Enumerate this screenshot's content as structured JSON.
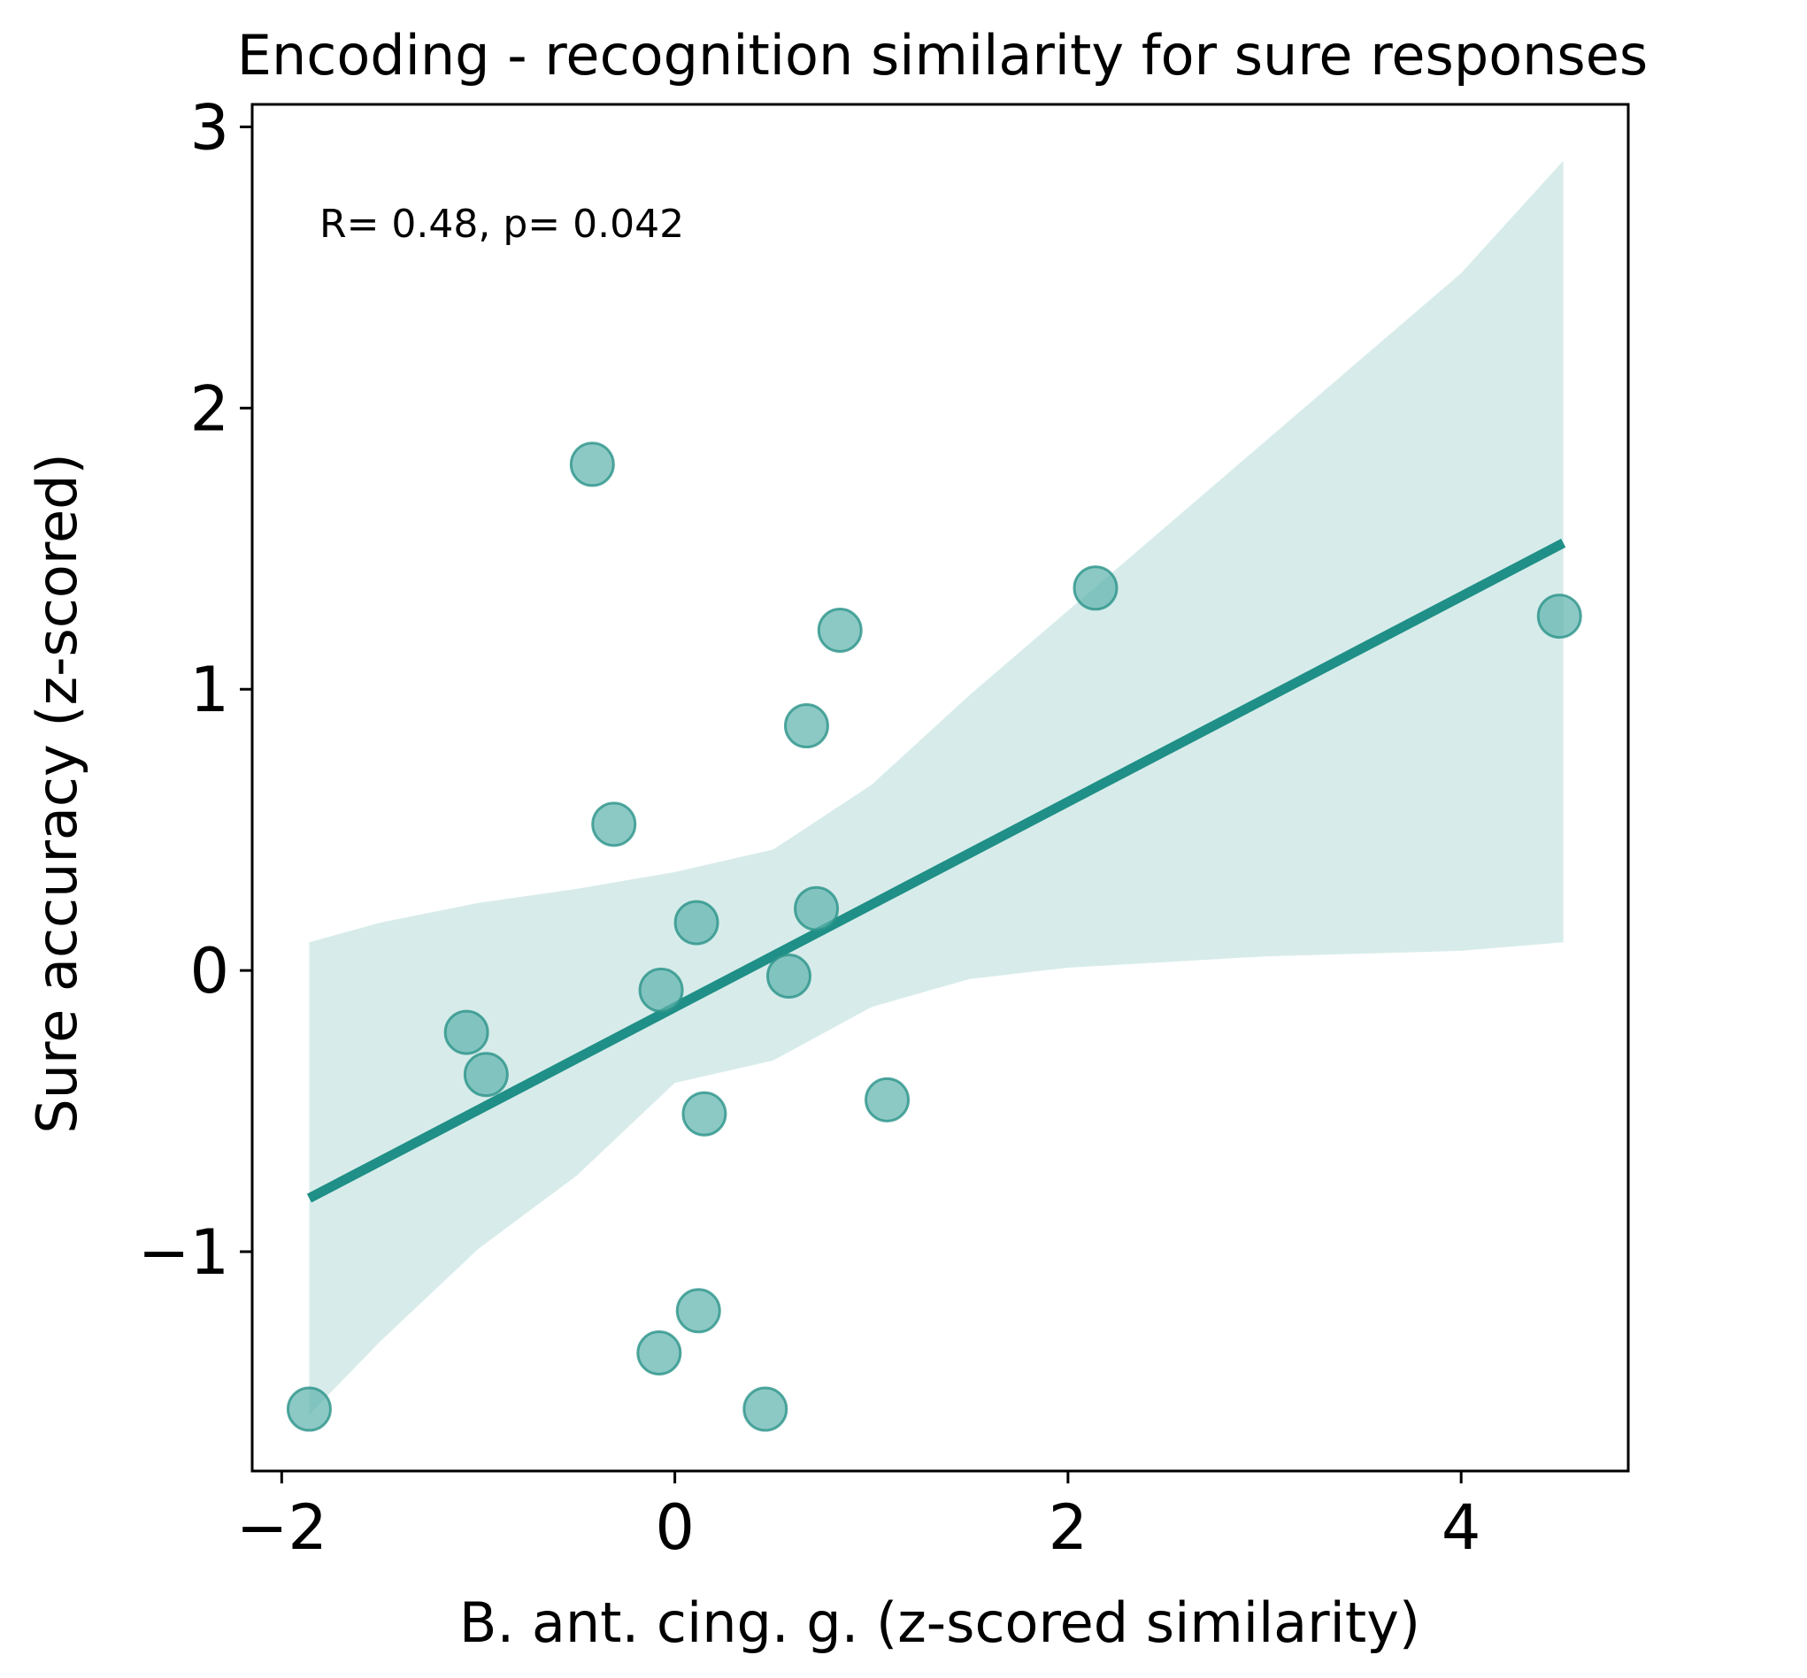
{
  "chart_data": {
    "type": "scatter",
    "title": "Encoding - recognition similarity for sure responses",
    "xlabel": "B. ant. cing. g. (z-scored similarity)",
    "ylabel": "Sure accuracy (z-scored)",
    "annotation": "R= 0.48, p= 0.042",
    "xlim": [
      -2.15,
      4.85
    ],
    "ylim": [
      -1.78,
      3.08
    ],
    "xticks": [
      -2,
      0,
      2,
      4
    ],
    "xtick_labels": [
      "−2",
      "0",
      "2",
      "4"
    ],
    "yticks": [
      -1,
      0,
      1,
      2,
      3
    ],
    "ytick_labels": [
      "−1",
      "0",
      "1",
      "2",
      "3"
    ],
    "grid": false,
    "colors": {
      "point_fill": "#5fb3ad",
      "point_edge": "#2a938a",
      "line": "#1f8f87",
      "band": "#d7ecea"
    },
    "points": [
      {
        "x": -1.86,
        "y": -1.56
      },
      {
        "x": -1.06,
        "y": -0.22
      },
      {
        "x": -0.96,
        "y": -0.37
      },
      {
        "x": -0.42,
        "y": 1.8
      },
      {
        "x": -0.31,
        "y": 0.52
      },
      {
        "x": -0.08,
        "y": -1.36
      },
      {
        "x": -0.07,
        "y": -0.07
      },
      {
        "x": 0.11,
        "y": 0.17
      },
      {
        "x": 0.12,
        "y": -1.21
      },
      {
        "x": 0.15,
        "y": -0.51
      },
      {
        "x": 0.46,
        "y": -1.56
      },
      {
        "x": 0.58,
        "y": -0.02
      },
      {
        "x": 0.67,
        "y": 0.87
      },
      {
        "x": 0.72,
        "y": 0.22
      },
      {
        "x": 0.84,
        "y": 1.21
      },
      {
        "x": 1.08,
        "y": -0.46
      },
      {
        "x": 2.14,
        "y": 1.36
      },
      {
        "x": 4.5,
        "y": 1.26
      }
    ],
    "regression": {
      "x": [
        -1.86,
        4.52
      ],
      "y": [
        -0.81,
        1.52
      ]
    },
    "ci_band": {
      "x": [
        -1.86,
        -1.5,
        -1.0,
        -0.5,
        0.0,
        0.5,
        1.0,
        1.5,
        2.0,
        2.5,
        3.0,
        3.5,
        4.0,
        4.52
      ],
      "upper": [
        0.1,
        0.17,
        0.24,
        0.29,
        0.35,
        0.43,
        0.66,
        0.98,
        1.28,
        1.58,
        1.88,
        2.18,
        2.48,
        2.88
      ],
      "lower": [
        -1.58,
        -1.32,
        -0.99,
        -0.73,
        -0.4,
        -0.32,
        -0.13,
        -0.03,
        0.01,
        0.03,
        0.05,
        0.06,
        0.07,
        0.1
      ]
    }
  }
}
